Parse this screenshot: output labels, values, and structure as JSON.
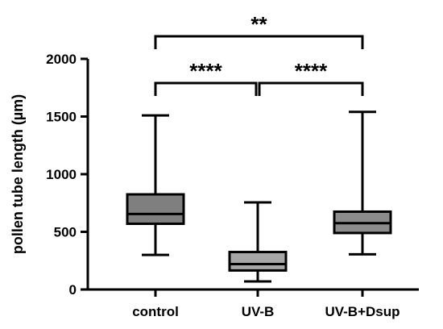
{
  "chart_data": {
    "type": "box",
    "title": "",
    "xlabel": "",
    "ylabel": "pollen tube length (µm)",
    "ylim": [
      0,
      2000
    ],
    "yticks": [
      {
        "value": 0,
        "label": "0"
      },
      {
        "value": 500,
        "label": "500"
      },
      {
        "value": 1000,
        "label": "1000"
      },
      {
        "value": 1500,
        "label": "1500"
      },
      {
        "value": 2000,
        "label": "2000"
      }
    ],
    "grid": false,
    "legend": "none",
    "categories": [
      "control",
      "UV-B",
      "UV-B+Dsup"
    ],
    "boxes": [
      {
        "category": "control",
        "min": 300,
        "q1": 570,
        "median": 655,
        "q3": 825,
        "max": 1510,
        "color": "#7f7f7f"
      },
      {
        "category": "UV-B",
        "min": 70,
        "q1": 165,
        "median": 220,
        "q3": 325,
        "max": 755,
        "color": "#a6a6a6"
      },
      {
        "category": "UV-B+Dsup",
        "min": 305,
        "q1": 490,
        "median": 575,
        "q3": 675,
        "max": 1540,
        "color": "#8c8c8c"
      }
    ],
    "significance": [
      {
        "from": "control",
        "to": "UV-B",
        "label": "****"
      },
      {
        "from": "UV-B",
        "to": "UV-B+Dsup",
        "label": "****"
      },
      {
        "from": "control",
        "to": "UV-B+Dsup",
        "label": "**"
      }
    ]
  }
}
